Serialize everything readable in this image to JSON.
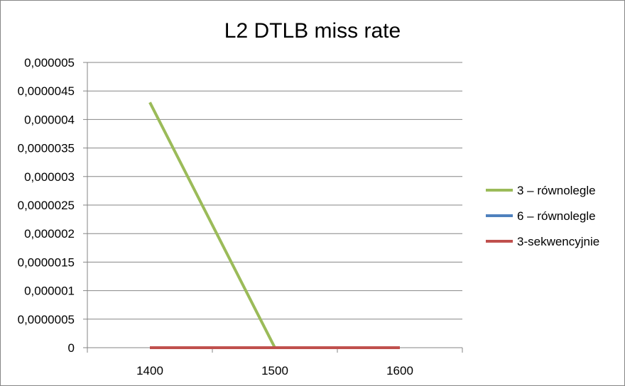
{
  "chart_data": {
    "type": "line",
    "title": "L2 DTLB miss rate",
    "xlabel": "",
    "ylabel": "",
    "categories": [
      "1400",
      "1500",
      "1600"
    ],
    "y_tick_labels": [
      "0",
      "0,0000005",
      "0,000001",
      "0,0000015",
      "0,000002",
      "0,0000025",
      "0,000003",
      "0,0000035",
      "0,000004",
      "0,0000045",
      "0,000005"
    ],
    "ylim": [
      0,
      5e-06
    ],
    "grid": true,
    "legend_position": "right",
    "series": [
      {
        "name": "3 – równolegle",
        "color": "#9bbb59",
        "values": [
          4.3e-06,
          0,
          0
        ]
      },
      {
        "name": "6 – równolegle",
        "color": "#4f81bd",
        "values": [
          0,
          0,
          0
        ]
      },
      {
        "name": "3-sekwencyjnie",
        "color": "#c0504d",
        "values": [
          0,
          0,
          0
        ]
      }
    ]
  }
}
